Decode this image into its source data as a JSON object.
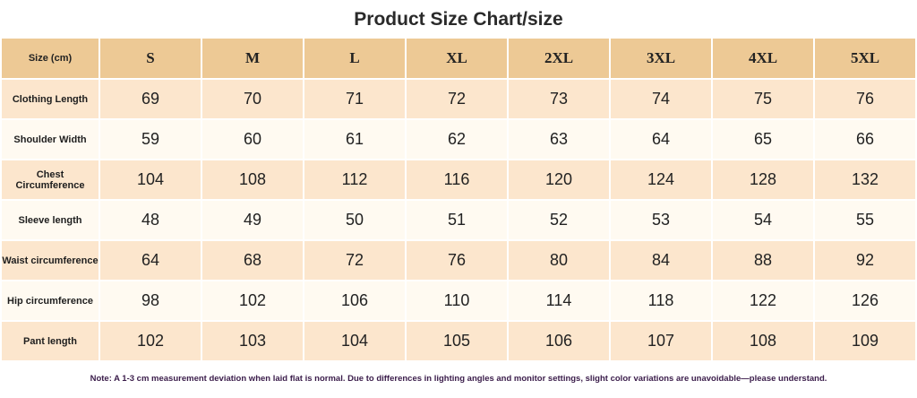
{
  "title": "Product Size Chart/size",
  "table": {
    "corner_label": "Size (cm)",
    "sizes": [
      "S",
      "M",
      "L",
      "XL",
      "2XL",
      "3XL",
      "4XL",
      "5XL"
    ],
    "rows": [
      {
        "label": "Clothing Length",
        "values": [
          "69",
          "70",
          "71",
          "72",
          "73",
          "74",
          "75",
          "76"
        ]
      },
      {
        "label": "Shoulder Width",
        "values": [
          "59",
          "60",
          "61",
          "62",
          "63",
          "64",
          "65",
          "66"
        ]
      },
      {
        "label": "Chest Circumference",
        "values": [
          "104",
          "108",
          "112",
          "116",
          "120",
          "124",
          "128",
          "132"
        ]
      },
      {
        "label": "Sleeve length",
        "values": [
          "48",
          "49",
          "50",
          "51",
          "52",
          "53",
          "54",
          "55"
        ]
      },
      {
        "label": "Waist circumference",
        "values": [
          "64",
          "68",
          "72",
          "76",
          "80",
          "84",
          "88",
          "92"
        ]
      },
      {
        "label": "Hip circumference",
        "values": [
          "98",
          "102",
          "106",
          "110",
          "114",
          "118",
          "122",
          "126"
        ]
      },
      {
        "label": "Pant length",
        "values": [
          "102",
          "103",
          "104",
          "105",
          "106",
          "107",
          "108",
          "109"
        ]
      }
    ]
  },
  "note": "Note: A 1-3 cm measurement deviation when laid flat is normal. Due to differences in lighting angles and monitor settings, slight color variations are unavoidable—please understand.",
  "colors": {
    "header_bg": "#edc995",
    "row_odd_bg": "#fce6cd",
    "row_even_bg": "#fffaf1",
    "note_text": "#3a1c4a"
  }
}
